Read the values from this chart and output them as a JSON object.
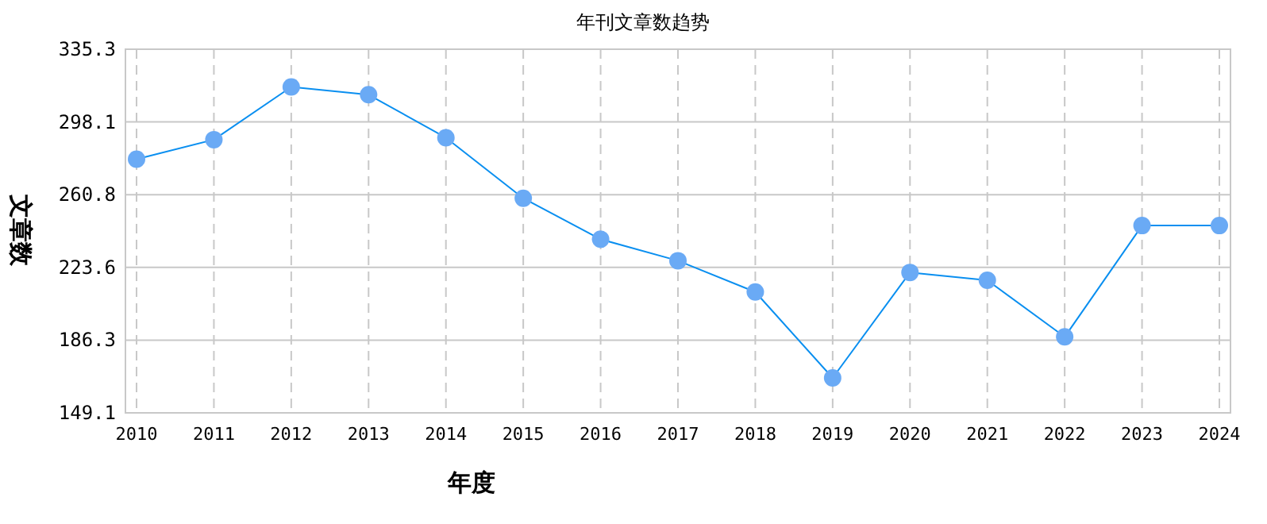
{
  "chart_data": {
    "type": "line",
    "title": "年刊文章数趋势",
    "xlabel": "年度",
    "ylabel": "文章数",
    "categories": [
      "2010",
      "2011",
      "2012",
      "2013",
      "2014",
      "2015",
      "2016",
      "2017",
      "2018",
      "2019",
      "2020",
      "2021",
      "2022",
      "2023",
      "2024"
    ],
    "series": [
      {
        "color": "#0a8ff0",
        "values": [
          279,
          289,
          316,
          312,
          290,
          259,
          238,
          227,
          211,
          167,
          221,
          217,
          188,
          245,
          245
        ]
      }
    ],
    "ylim": [
      149.1,
      335.3
    ],
    "yticks": [
      149.1,
      186.3,
      223.6,
      260.8,
      298.1,
      335.3
    ],
    "grid": true,
    "marker": "circle",
    "line_style": "solid"
  }
}
